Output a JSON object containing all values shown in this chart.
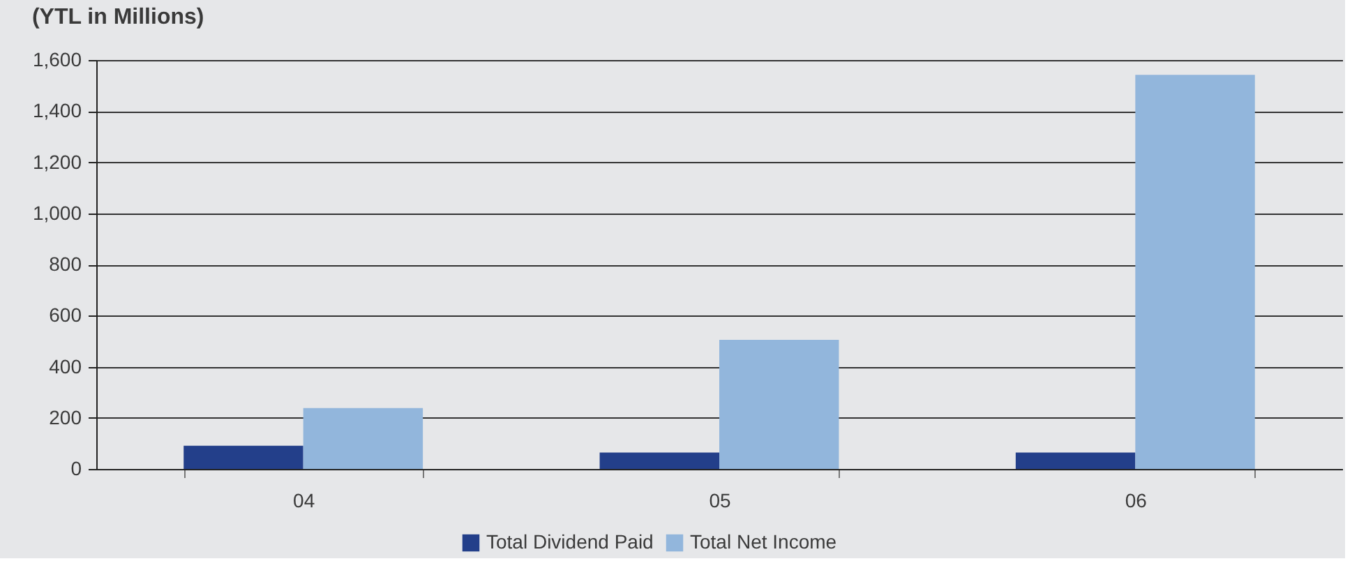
{
  "chart_data": {
    "type": "bar",
    "title": "(YTL in Millions)",
    "categories": [
      "04",
      "05",
      "06"
    ],
    "series": [
      {
        "name": "Total Dividend Paid",
        "color": "#233f8a",
        "values": [
          91,
          64,
          64
        ]
      },
      {
        "name": "Total Net Income",
        "color": "#92b6dc",
        "values": [
          238,
          505,
          1542
        ]
      }
    ],
    "ylim": [
      0,
      1600
    ],
    "yticks": [
      0,
      200,
      400,
      600,
      800,
      {
        "value": 1000,
        "label": "1,000"
      },
      {
        "value": 1200,
        "label": "1,200"
      },
      {
        "value": 1400,
        "label": "1,400"
      },
      {
        "value": 1600,
        "label": "1,600"
      }
    ],
    "grid": "y",
    "legend": "bottom"
  }
}
